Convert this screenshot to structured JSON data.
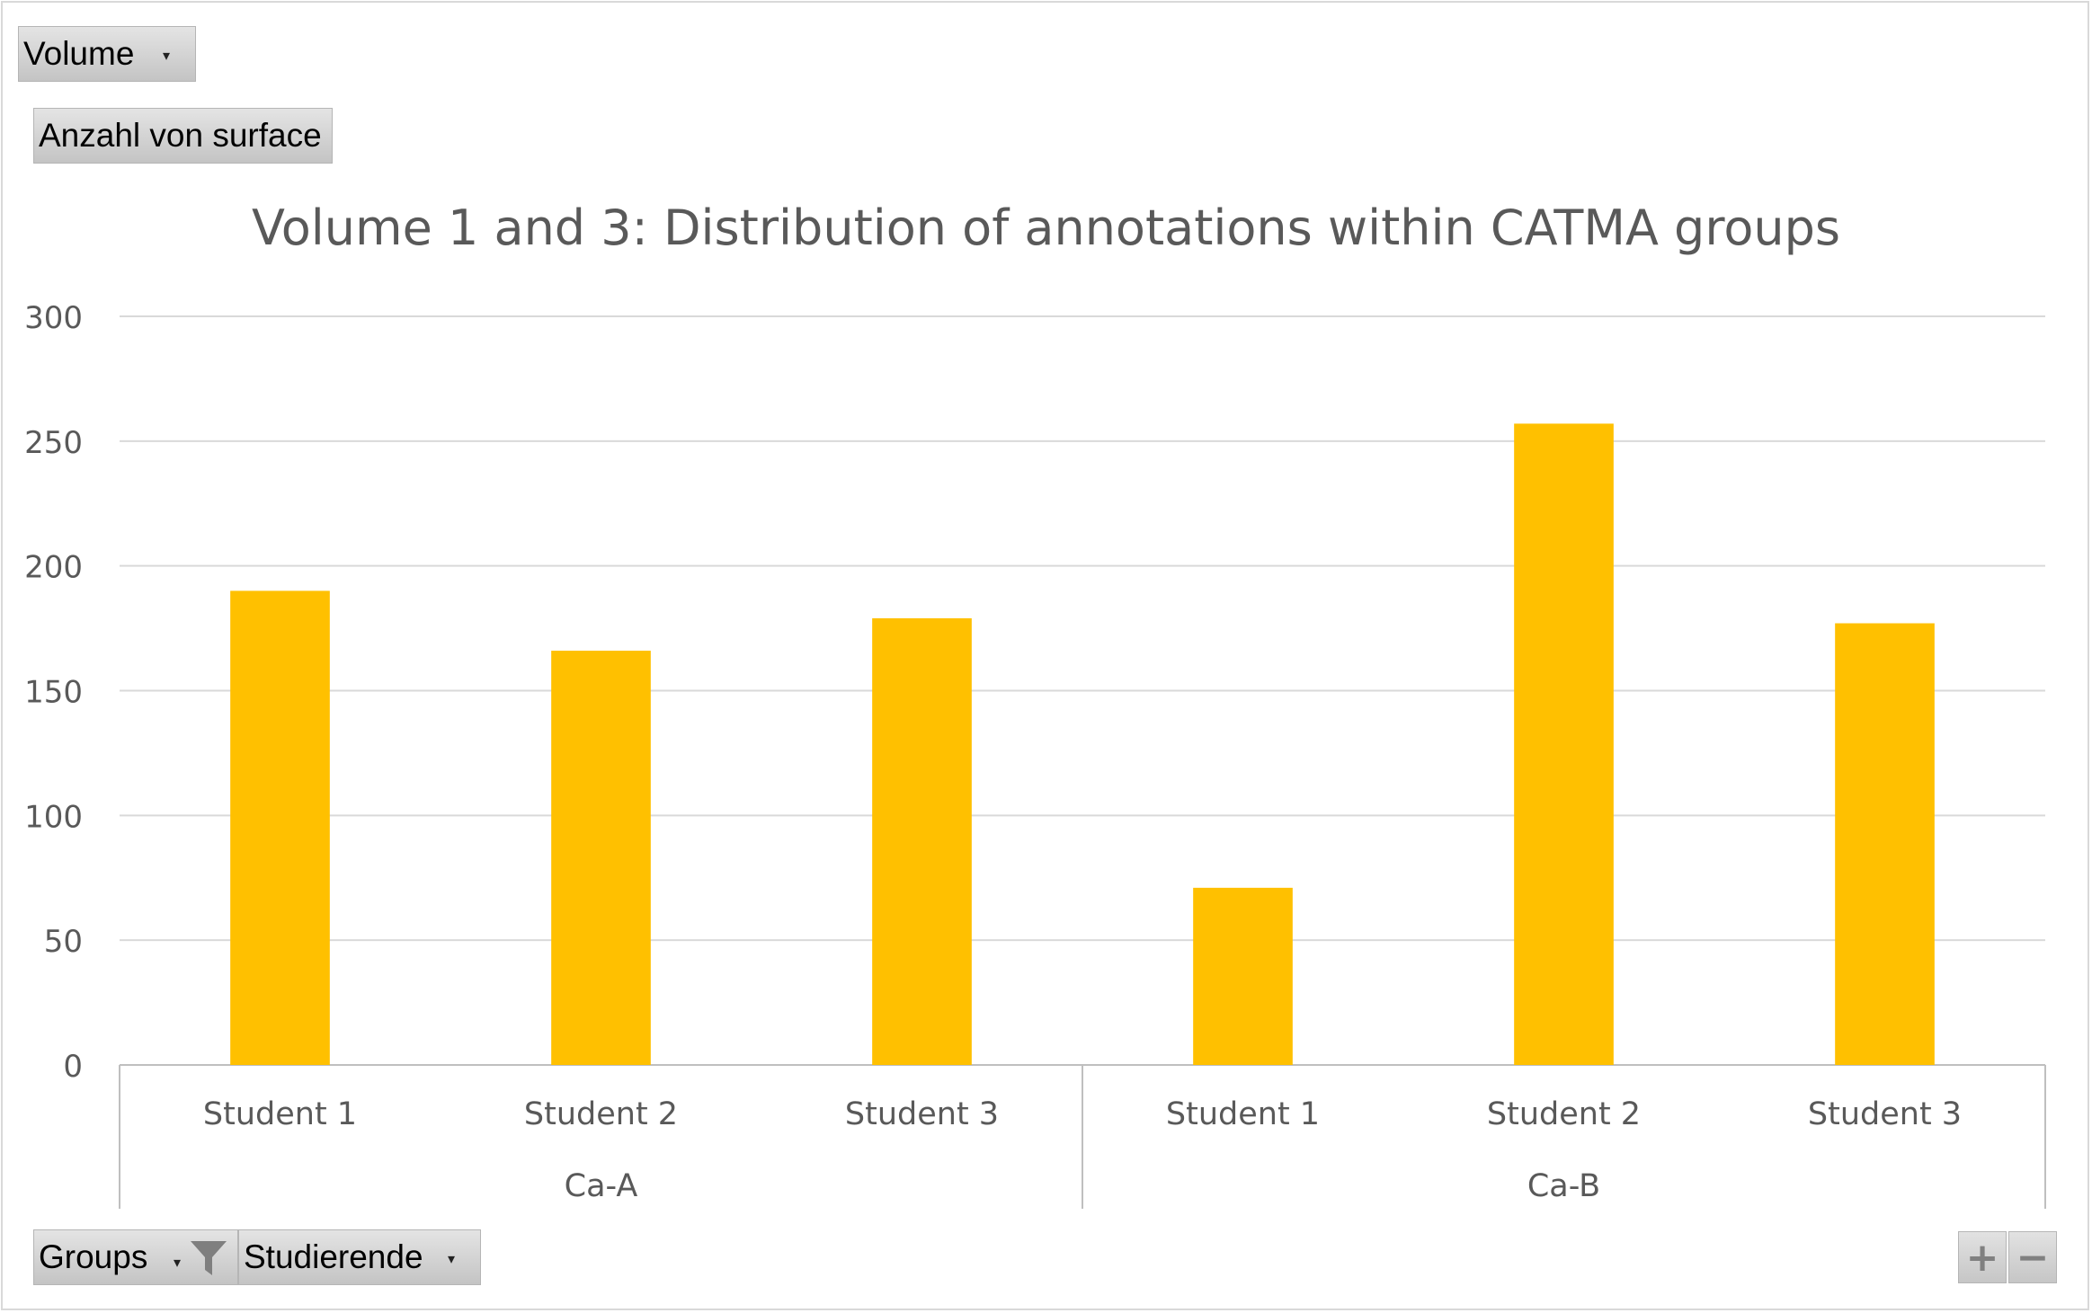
{
  "filter_button": {
    "label": "Volume",
    "arrow": "▾"
  },
  "value_button": {
    "label": "Anzahl von surface"
  },
  "axis_buttons": [
    {
      "label": "Groups",
      "arrow": "▾",
      "icon": "funnel-filter-icon"
    },
    {
      "label": "Studierende",
      "arrow": "▾"
    }
  ],
  "zoom": {
    "plus": "+",
    "minus": "−"
  },
  "chart_data": {
    "type": "bar",
    "title": "Volume 1 and 3: Distribution of annotations within CATMA groups",
    "xlabel": "",
    "ylabel": "",
    "ylim": [
      0,
      300
    ],
    "yticks": [
      0,
      50,
      100,
      150,
      200,
      250,
      300
    ],
    "grid": true,
    "legend": "none",
    "bar_color": "#FFC000",
    "groups": [
      {
        "name": "Ca-A",
        "categories": [
          "Student 1",
          "Student 2",
          "Student 3"
        ],
        "values": [
          190,
          166,
          179
        ]
      },
      {
        "name": "Ca-B",
        "categories": [
          "Student 1",
          "Student 2",
          "Student 3"
        ],
        "values": [
          71,
          257,
          177
        ]
      }
    ]
  }
}
